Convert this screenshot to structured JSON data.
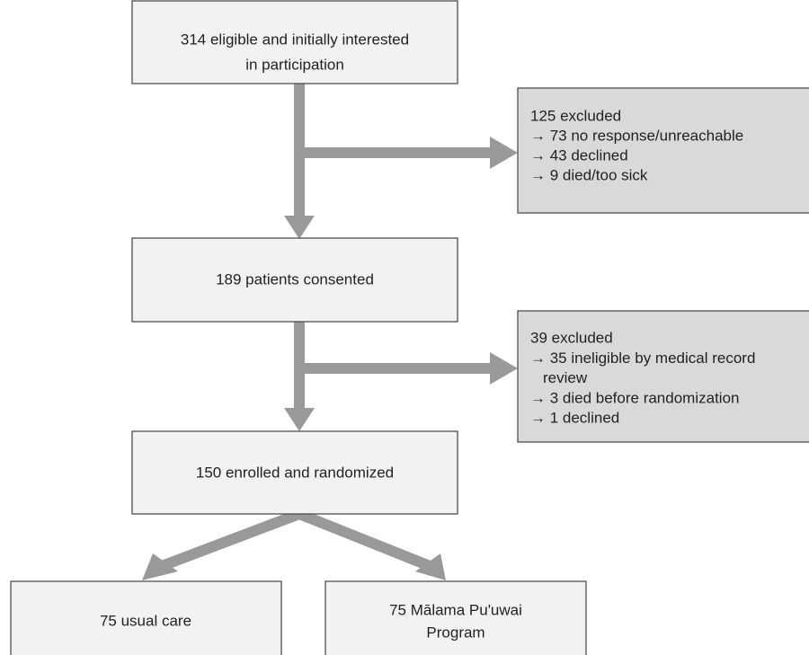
{
  "nodes": [
    {
      "lines": [
        "314 eligible and initially interested",
        "in participation"
      ]
    },
    {
      "lines": [
        "125 excluded",
        "→ 73 no response/unreachable",
        "→ 43 declined",
        "→ 9 died/too sick"
      ]
    },
    {
      "lines": [
        "189 patients consented"
      ]
    },
    {
      "lines": [
        "39 excluded",
        "→ 35 ineligible by medical record",
        "review",
        "→ 3 died before randomization",
        "→ 1 declined"
      ]
    },
    {
      "lines": [
        "150 enrolled and randomized"
      ]
    },
    {
      "lines": [
        "75 usual care"
      ]
    },
    {
      "lines": [
        "75 Mālama Pu'uwai",
        "Program"
      ]
    }
  ]
}
